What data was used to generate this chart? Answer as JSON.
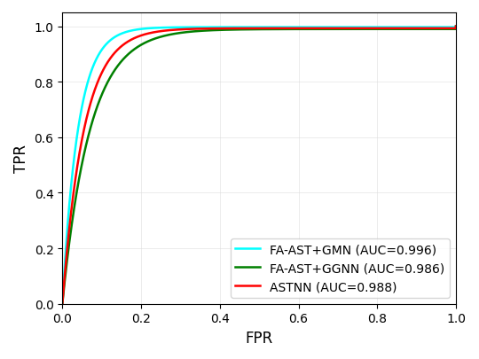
{
  "title": "",
  "xlabel": "FPR",
  "ylabel": "TPR",
  "legend_entries": [
    {
      "label": "FA-AST+GMN (AUC=0.996)",
      "color": "#00FFFF",
      "linewidth": 1.8
    },
    {
      "label": "FA-AST+GGNN (AUC=0.986)",
      "color": "#008000",
      "linewidth": 1.8
    },
    {
      "label": "ASTNN (AUC=0.988)",
      "color": "#FF0000",
      "linewidth": 1.8
    }
  ],
  "curve_params": [
    {
      "shape": 0.04,
      "scale": 0.997
    },
    {
      "shape": 0.07,
      "scale": 0.99
    },
    {
      "shape": 0.055,
      "scale": 0.993
    }
  ],
  "xlim": [
    0.0,
    1.0
  ],
  "ylim": [
    0.0,
    1.05
  ],
  "figsize": [
    5.4,
    4.06
  ],
  "dpi": 100,
  "legend_loc": "lower right",
  "background_color": "#ffffff"
}
